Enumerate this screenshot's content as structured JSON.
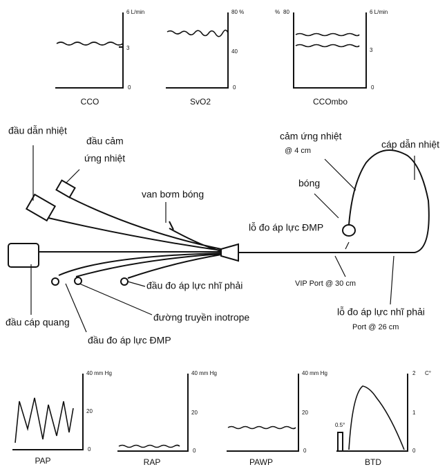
{
  "top_panels": [
    {
      "title": "CCO",
      "axis_labels": [
        "6 L/min",
        "3",
        "0"
      ]
    },
    {
      "title": "SvO2",
      "axis_labels": [
        "80 %",
        "40",
        "0"
      ]
    },
    {
      "title": "CCOmbo",
      "axis_labels": [
        "%",
        "80",
        "6 L/min",
        "3",
        "0"
      ]
    }
  ],
  "catheter": {
    "thermal_connector": "đầu dẫn nhiệt",
    "thermistor_connector": [
      "đầu cảm",
      "ứng nhiệt"
    ],
    "balloon_valve": "van bơm bóng",
    "thermistor": [
      "cảm ứng nhiệt",
      "@ 4 cm"
    ],
    "thermal_filament": "cáp dẫn nhiệt",
    "balloon": "bóng",
    "pa_port": "lỗ đo áp lực ĐMP",
    "vip_port": "VIP Port @ 30 cm",
    "ra_port": [
      "lỗ đo áp lực nhĩ phải",
      "Port @ 26 cm"
    ],
    "ra_connector": "đầu đo áp lực nhĩ phải",
    "inotrope_line": "đường truyền inotrope",
    "optical_connector": "đầu cáp quang",
    "pa_connector": "đầu đo áp lực ĐMP"
  },
  "bottom_panels": [
    {
      "title": "PAP",
      "axis_labels": [
        "40 mm Hg",
        "20",
        "0"
      ]
    },
    {
      "title": "RAP",
      "axis_labels": [
        "40 mm Hg",
        "20",
        "0"
      ]
    },
    {
      "title": "PAWP",
      "axis_labels": [
        "40 mm Hg",
        "20",
        "0"
      ]
    },
    {
      "title": "BTD",
      "axis_labels": [
        "2",
        "C°",
        "1",
        "0",
        "0.5°"
      ]
    }
  ]
}
